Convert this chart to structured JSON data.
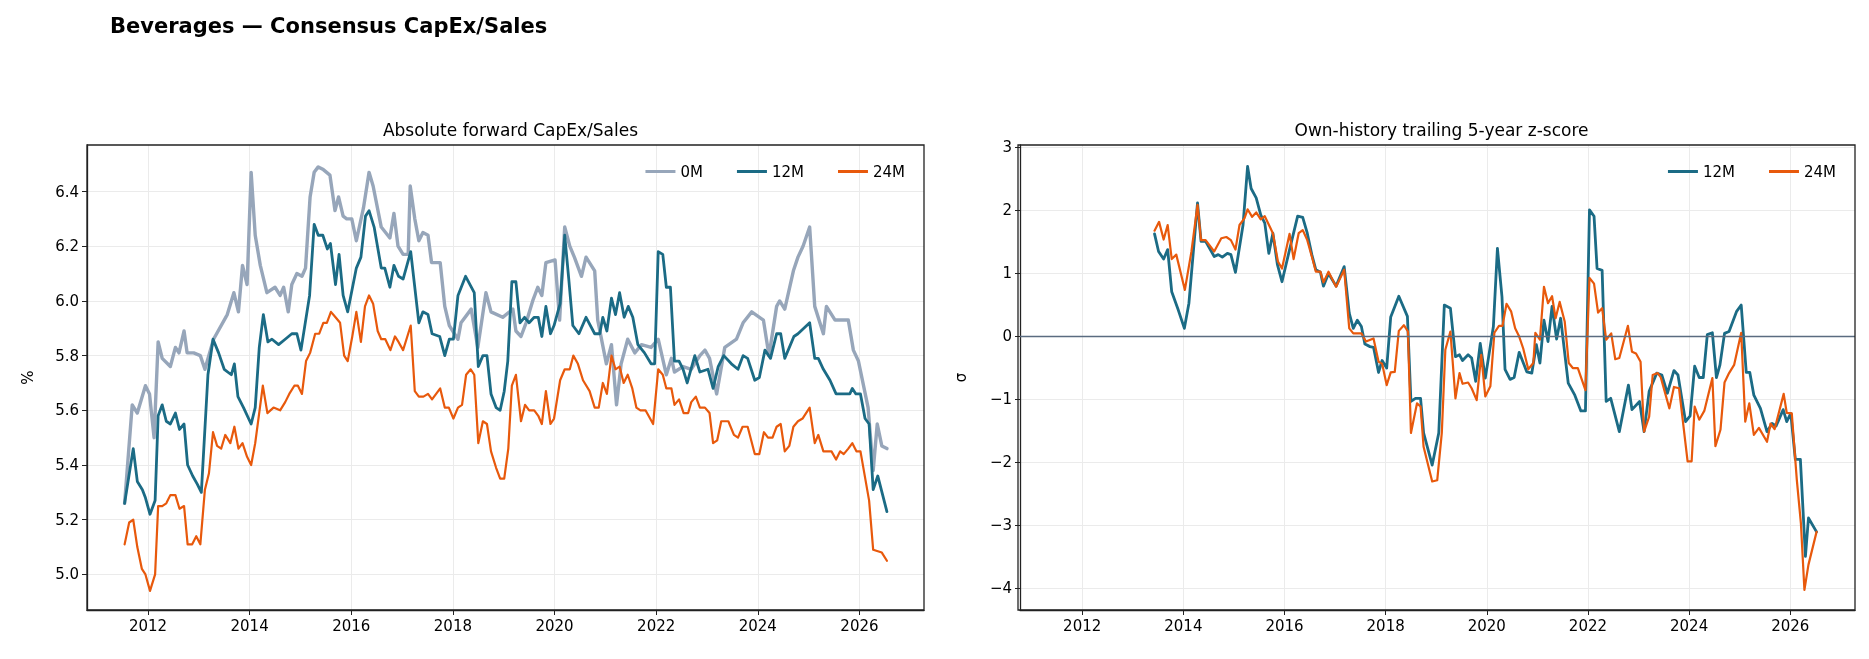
{
  "chart_data": [
    {
      "type": "line",
      "title": "Absolute forward CapEx/Sales",
      "ylabel": "%",
      "annotations": [
        "Beverages — Consensus CapEx/Sales"
      ],
      "xlim": [
        2010.8,
        2027.27
      ],
      "xticks": [
        2012,
        2014,
        2016,
        2018,
        2020,
        2022,
        2024,
        2026
      ],
      "ylim": [
        4.87,
        6.57
      ],
      "yticks": [
        {
          "value": 5,
          "label": "5.0"
        },
        {
          "value": 5.2,
          "label": "5.2"
        },
        {
          "value": 5.4,
          "label": "5.4"
        },
        {
          "value": 5.6,
          "label": "5.6"
        },
        {
          "value": 5.8,
          "label": "5.8"
        },
        {
          "value": 6,
          "label": "6.0"
        },
        {
          "value": 6.2,
          "label": "6.2"
        },
        {
          "value": 6.4,
          "label": "6.4"
        }
      ],
      "grid": true,
      "legend": "top right",
      "series": [
        {
          "name": "0M",
          "color": "#97a6ba",
          "x": [
            2011.54,
            2011.69,
            2011.79,
            2011.95,
            2012.03,
            2012.12,
            2012.2,
            2012.28,
            2012.44,
            2012.54,
            2012.61,
            2012.71,
            2012.77,
            2012.9,
            2013.03,
            2013.12,
            2013.29,
            2013.56,
            2013.69,
            2013.78,
            2013.86,
            2013.95,
            2014.03,
            2014.11,
            2014.21,
            2014.34,
            2014.5,
            2014.6,
            2014.67,
            2014.76,
            2014.83,
            2014.93,
            2015.03,
            2015.1,
            2015.19,
            2015.27,
            2015.35,
            2015.45,
            2015.58,
            2015.68,
            2015.75,
            2015.84,
            2015.91,
            2016.01,
            2016.1,
            2016.24,
            2016.35,
            2016.43,
            2016.59,
            2016.76,
            2016.84,
            2016.92,
            2017.02,
            2017.12,
            2017.16,
            2017.25,
            2017.33,
            2017.41,
            2017.51,
            2017.58,
            2017.75,
            2017.84,
            2017.93,
            2018.03,
            2018.1,
            2018.16,
            2018.36,
            2018.49,
            2018.65,
            2018.75,
            2018.98,
            2019.18,
            2019.24,
            2019.34,
            2019.44,
            2019.57,
            2019.67,
            2019.75,
            2019.83,
            2020.01,
            2020.1,
            2020.2,
            2020.3,
            2020.39,
            2020.53,
            2020.62,
            2020.79,
            2020.85,
            2021.02,
            2021.12,
            2021.22,
            2021.31,
            2021.44,
            2021.58,
            2021.71,
            2021.9,
            2022.04,
            2022.2,
            2022.3,
            2022.36,
            2022.53,
            2022.69,
            2022.86,
            2022.96,
            2023.05,
            2023.19,
            2023.35,
            2023.58,
            2023.71,
            2023.88,
            2024.11,
            2024.22,
            2024.37,
            2024.43,
            2024.53,
            2024.7,
            2024.79,
            2024.89,
            2025.02,
            2025.12,
            2025.29,
            2025.35,
            2025.52,
            2025.78,
            2025.88,
            2025.98,
            2026.17,
            2026.27,
            2026.35,
            2026.44,
            2026.54
          ],
          "values": [
            5.26,
            5.62,
            5.59,
            5.69,
            5.66,
            5.5,
            5.85,
            5.79,
            5.76,
            5.83,
            5.81,
            5.89,
            5.81,
            5.81,
            5.8,
            5.75,
            5.86,
            5.95,
            6.03,
            5.96,
            6.13,
            6.06,
            6.47,
            6.24,
            6.13,
            6.03,
            6.05,
            6.02,
            6.05,
            5.96,
            6.06,
            6.1,
            6.09,
            6.12,
            6.38,
            6.47,
            6.49,
            6.48,
            6.46,
            6.33,
            6.38,
            6.31,
            6.3,
            6.3,
            6.22,
            6.34,
            6.47,
            6.42,
            6.27,
            6.23,
            6.32,
            6.2,
            6.17,
            6.17,
            6.42,
            6.3,
            6.22,
            6.25,
            6.24,
            6.14,
            6.14,
            5.98,
            5.91,
            5.88,
            5.86,
            5.92,
            5.97,
            5.83,
            6.03,
            5.96,
            5.94,
            5.97,
            5.89,
            5.87,
            5.92,
            6,
            6.05,
            6.02,
            6.14,
            6.15,
            5.93,
            6.27,
            6.2,
            6.16,
            6.09,
            6.16,
            6.11,
            5.93,
            5.77,
            5.84,
            5.62,
            5.77,
            5.86,
            5.81,
            5.84,
            5.83,
            5.86,
            5.73,
            5.79,
            5.74,
            5.76,
            5.75,
            5.8,
            5.82,
            5.79,
            5.66,
            5.83,
            5.86,
            5.92,
            5.96,
            5.93,
            5.8,
            5.98,
            6,
            5.97,
            6.11,
            6.16,
            6.2,
            6.27,
            5.98,
            5.88,
            5.98,
            5.93,
            5.93,
            5.82,
            5.78,
            5.61,
            5.38,
            5.55,
            5.47,
            5.46
          ]
        },
        {
          "name": "12M",
          "color": "#1b6b85",
          "x": [
            2011.54,
            2011.71,
            2011.79,
            2011.89,
            2011.95,
            2012.04,
            2012.14,
            2012.2,
            2012.28,
            2012.36,
            2012.44,
            2012.54,
            2012.62,
            2012.71,
            2012.78,
            2012.88,
            2012.97,
            2013.05,
            2013.18,
            2013.28,
            2013.39,
            2013.5,
            2013.64,
            2013.7,
            2013.77,
            2013.88,
            2014.03,
            2014.11,
            2014.19,
            2014.27,
            2014.36,
            2014.44,
            2014.57,
            2014.7,
            2014.83,
            2014.93,
            2015.01,
            2015.18,
            2015.27,
            2015.35,
            2015.44,
            2015.53,
            2015.59,
            2015.69,
            2015.76,
            2015.84,
            2015.93,
            2016.1,
            2016.19,
            2016.28,
            2016.35,
            2016.45,
            2016.59,
            2016.66,
            2016.76,
            2016.84,
            2016.93,
            2017.02,
            2017.17,
            2017.33,
            2017.41,
            2017.51,
            2017.59,
            2017.74,
            2017.84,
            2017.93,
            2018.01,
            2018.1,
            2018.25,
            2018.42,
            2018.5,
            2018.59,
            2018.67,
            2018.75,
            2018.85,
            2018.93,
            2019.01,
            2019.08,
            2019.16,
            2019.24,
            2019.32,
            2019.41,
            2019.5,
            2019.6,
            2019.68,
            2019.75,
            2019.83,
            2019.92,
            2019.99,
            2020.11,
            2020.2,
            2020.28,
            2020.36,
            2020.48,
            2020.62,
            2020.79,
            2020.89,
            2020.95,
            2021.03,
            2021.12,
            2021.2,
            2021.28,
            2021.37,
            2021.45,
            2021.54,
            2021.64,
            2021.77,
            2021.9,
            2021.97,
            2022.04,
            2022.13,
            2022.2,
            2022.28,
            2022.36,
            2022.45,
            2022.53,
            2022.61,
            2022.76,
            2022.86,
            2023.02,
            2023.12,
            2023.22,
            2023.33,
            2023.48,
            2023.61,
            2023.71,
            2023.8,
            2023.94,
            2024.03,
            2024.14,
            2024.25,
            2024.37,
            2024.45,
            2024.53,
            2024.71,
            2024.79,
            2025.02,
            2025.12,
            2025.19,
            2025.29,
            2025.42,
            2025.54,
            2025.71,
            2025.81,
            2025.86,
            2025.93,
            2026.02,
            2026.11,
            2026.19,
            2026.27,
            2026.36,
            2026.54
          ],
          "values": [
            5.26,
            5.46,
            5.34,
            5.31,
            5.28,
            5.22,
            5.27,
            5.58,
            5.62,
            5.56,
            5.55,
            5.59,
            5.53,
            5.55,
            5.4,
            5.36,
            5.33,
            5.3,
            5.73,
            5.86,
            5.81,
            5.75,
            5.73,
            5.77,
            5.65,
            5.61,
            5.55,
            5.61,
            5.83,
            5.95,
            5.85,
            5.86,
            5.84,
            5.86,
            5.88,
            5.88,
            5.82,
            6.02,
            6.28,
            6.24,
            6.24,
            6.19,
            6.21,
            6.06,
            6.17,
            6.02,
            5.96,
            6.12,
            6.16,
            6.31,
            6.33,
            6.27,
            6.12,
            6.12,
            6.05,
            6.13,
            6.09,
            6.08,
            6.18,
            5.92,
            5.96,
            5.95,
            5.88,
            5.87,
            5.8,
            5.86,
            5.86,
            6.02,
            6.09,
            6.03,
            5.76,
            5.8,
            5.8,
            5.66,
            5.61,
            5.6,
            5.67,
            5.78,
            6.07,
            6.07,
            5.92,
            5.94,
            5.92,
            5.94,
            5.94,
            5.87,
            5.98,
            5.88,
            5.91,
            5.99,
            6.24,
            6.08,
            5.91,
            5.88,
            5.94,
            5.88,
            5.88,
            5.94,
            5.89,
            6.01,
            5.95,
            6.03,
            5.94,
            5.98,
            5.94,
            5.84,
            5.81,
            5.77,
            5.77,
            6.18,
            6.17,
            6.05,
            6.05,
            5.78,
            5.78,
            5.75,
            5.7,
            5.8,
            5.74,
            5.75,
            5.68,
            5.76,
            5.8,
            5.77,
            5.75,
            5.8,
            5.79,
            5.71,
            5.72,
            5.82,
            5.79,
            5.88,
            5.88,
            5.79,
            5.87,
            5.88,
            5.92,
            5.79,
            5.79,
            5.75,
            5.71,
            5.66,
            5.66,
            5.66,
            5.68,
            5.66,
            5.66,
            5.57,
            5.55,
            5.31,
            5.36,
            5.23
          ]
        },
        {
          "name": "24M",
          "color": "#e8590c",
          "x": [
            2011.54,
            2011.63,
            2011.71,
            2011.79,
            2011.88,
            2011.95,
            2012.04,
            2012.14,
            2012.2,
            2012.28,
            2012.36,
            2012.44,
            2012.54,
            2012.62,
            2012.71,
            2012.78,
            2012.87,
            2012.95,
            2013.03,
            2013.12,
            2013.2,
            2013.28,
            2013.36,
            2013.44,
            2013.52,
            2013.62,
            2013.7,
            2013.78,
            2013.86,
            2013.95,
            2014.03,
            2014.11,
            2014.26,
            2014.35,
            2014.47,
            2014.6,
            2014.7,
            2014.78,
            2014.88,
            2014.95,
            2015.03,
            2015.11,
            2015.19,
            2015.29,
            2015.37,
            2015.45,
            2015.52,
            2015.6,
            2015.69,
            2015.78,
            2015.86,
            2015.93,
            2016.02,
            2016.1,
            2016.19,
            2016.27,
            2016.35,
            2016.43,
            2016.52,
            2016.59,
            2016.67,
            2016.77,
            2016.86,
            2016.93,
            2017.02,
            2017.17,
            2017.25,
            2017.33,
            2017.42,
            2017.51,
            2017.59,
            2017.75,
            2017.84,
            2017.92,
            2018.01,
            2018.1,
            2018.18,
            2018.26,
            2018.35,
            2018.42,
            2018.5,
            2018.59,
            2018.67,
            2018.75,
            2018.85,
            2018.93,
            2019.01,
            2019.09,
            2019.16,
            2019.24,
            2019.34,
            2019.42,
            2019.5,
            2019.6,
            2019.68,
            2019.75,
            2019.83,
            2019.92,
            2019.99,
            2020.11,
            2020.2,
            2020.3,
            2020.37,
            2020.46,
            2020.56,
            2020.69,
            2020.79,
            2020.87,
            2020.95,
            2021.03,
            2021.12,
            2021.2,
            2021.28,
            2021.36,
            2021.44,
            2021.53,
            2021.61,
            2021.69,
            2021.79,
            2021.94,
            2022.04,
            2022.13,
            2022.2,
            2022.3,
            2022.36,
            2022.45,
            2022.54,
            2022.63,
            2022.69,
            2022.78,
            2022.86,
            2022.96,
            2023.05,
            2023.12,
            2023.2,
            2023.28,
            2023.42,
            2023.53,
            2023.61,
            2023.7,
            2023.8,
            2023.94,
            2024.03,
            2024.12,
            2024.2,
            2024.29,
            2024.37,
            2024.45,
            2024.53,
            2024.62,
            2024.7,
            2024.79,
            2024.88,
            2025.02,
            2025.12,
            2025.19,
            2025.29,
            2025.35,
            2025.45,
            2025.54,
            2025.62,
            2025.69,
            2025.78,
            2025.86,
            2025.94,
            2026.02,
            2026.19,
            2026.27,
            2026.44,
            2026.54
          ],
          "values": [
            5.11,
            5.19,
            5.2,
            5.1,
            5.02,
            5,
            4.94,
            5,
            5.25,
            5.25,
            5.26,
            5.29,
            5.29,
            5.24,
            5.25,
            5.11,
            5.11,
            5.14,
            5.11,
            5.31,
            5.37,
            5.52,
            5.47,
            5.46,
            5.51,
            5.48,
            5.54,
            5.46,
            5.48,
            5.43,
            5.4,
            5.48,
            5.69,
            5.59,
            5.61,
            5.6,
            5.63,
            5.66,
            5.69,
            5.69,
            5.66,
            5.78,
            5.81,
            5.88,
            5.88,
            5.92,
            5.92,
            5.96,
            5.94,
            5.92,
            5.8,
            5.78,
            5.87,
            5.96,
            5.85,
            5.98,
            6.02,
            5.99,
            5.89,
            5.86,
            5.86,
            5.82,
            5.87,
            5.85,
            5.82,
            5.91,
            5.67,
            5.65,
            5.65,
            5.66,
            5.64,
            5.68,
            5.61,
            5.61,
            5.57,
            5.61,
            5.62,
            5.73,
            5.75,
            5.73,
            5.48,
            5.56,
            5.55,
            5.45,
            5.39,
            5.35,
            5.35,
            5.46,
            5.69,
            5.73,
            5.56,
            5.62,
            5.6,
            5.6,
            5.58,
            5.55,
            5.67,
            5.55,
            5.57,
            5.71,
            5.75,
            5.75,
            5.8,
            5.77,
            5.71,
            5.67,
            5.61,
            5.61,
            5.7,
            5.66,
            5.8,
            5.75,
            5.76,
            5.7,
            5.73,
            5.68,
            5.61,
            5.6,
            5.6,
            5.55,
            5.75,
            5.73,
            5.68,
            5.68,
            5.62,
            5.64,
            5.59,
            5.59,
            5.63,
            5.65,
            5.61,
            5.61,
            5.59,
            5.48,
            5.49,
            5.56,
            5.56,
            5.51,
            5.5,
            5.54,
            5.54,
            5.44,
            5.44,
            5.52,
            5.5,
            5.5,
            5.54,
            5.55,
            5.45,
            5.47,
            5.54,
            5.56,
            5.57,
            5.61,
            5.48,
            5.51,
            5.45,
            5.45,
            5.45,
            5.42,
            5.45,
            5.44,
            5.46,
            5.48,
            5.45,
            5.45,
            5.27,
            5.09,
            5.08,
            5.05
          ]
        }
      ]
    },
    {
      "type": "line",
      "title": "Own-history trailing 5-year z-score",
      "ylabel": "σ",
      "xlim": [
        2010.77,
        2027.28
      ],
      "xticks": [
        2012,
        2014,
        2016,
        2018,
        2020,
        2022,
        2024,
        2026
      ],
      "ylim": [
        -4.35,
        3.03
      ],
      "yticks": [
        {
          "value": -4,
          "label": "−4"
        },
        {
          "value": -3,
          "label": "−3"
        },
        {
          "value": -2,
          "label": "−2"
        },
        {
          "value": -1,
          "label": "−1"
        },
        0,
        1,
        2,
        3
      ],
      "grid": true,
      "legend": "top right",
      "ref_lines": [
        {
          "axis": "y",
          "value": 0,
          "color": "#5a6b80"
        }
      ],
      "series": [
        {
          "name": "12M",
          "color": "#1b6b85",
          "x": [
            2013.43,
            2013.51,
            2013.61,
            2013.69,
            2013.77,
            2013.9,
            2014.02,
            2014.11,
            2014.28,
            2014.35,
            2014.44,
            2014.61,
            2014.69,
            2014.77,
            2014.87,
            2014.94,
            2015.03,
            2015.18,
            2015.27,
            2015.34,
            2015.44,
            2015.53,
            2015.61,
            2015.69,
            2015.77,
            2015.86,
            2015.95,
            2016.1,
            2016.26,
            2016.36,
            2016.45,
            2016.54,
            2016.62,
            2016.71,
            2016.77,
            2016.87,
            2017.02,
            2017.18,
            2017.28,
            2017.36,
            2017.44,
            2017.52,
            2017.59,
            2017.69,
            2017.76,
            2017.86,
            2017.93,
            2018.02,
            2018.1,
            2018.26,
            2018.43,
            2018.5,
            2018.59,
            2018.69,
            2018.75,
            2018.92,
            2019.05,
            2019.16,
            2019.28,
            2019.38,
            2019.46,
            2019.52,
            2019.63,
            2019.7,
            2019.78,
            2019.87,
            2019.97,
            2020.13,
            2020.21,
            2020.3,
            2020.36,
            2020.46,
            2020.54,
            2020.64,
            2020.79,
            2020.89,
            2020.98,
            2021.05,
            2021.13,
            2021.21,
            2021.29,
            2021.38,
            2021.46,
            2021.61,
            2021.74,
            2021.86,
            2021.95,
            2022.03,
            2022.12,
            2022.18,
            2022.28,
            2022.36,
            2022.45,
            2022.62,
            2022.8,
            2022.87,
            2023.02,
            2023.11,
            2023.21,
            2023.36,
            2023.46,
            2023.57,
            2023.7,
            2023.78,
            2023.93,
            2024.02,
            2024.11,
            2024.2,
            2024.28,
            2024.36,
            2024.46,
            2024.54,
            2024.61,
            2024.7,
            2024.79,
            2024.94,
            2025.03,
            2025.13,
            2025.2,
            2025.28,
            2025.41,
            2025.54,
            2025.64,
            2025.72,
            2025.86,
            2025.93,
            2026.01,
            2026.1,
            2026.2,
            2026.3,
            2026.36,
            2026.52
          ],
          "values": [
            1.62,
            1.34,
            1.22,
            1.37,
            0.7,
            0.41,
            0.12,
            0.52,
            2.11,
            1.5,
            1.5,
            1.26,
            1.29,
            1.25,
            1.31,
            1.29,
            1.01,
            1.76,
            2.69,
            2.34,
            2.19,
            1.92,
            1.79,
            1.31,
            1.63,
            1.13,
            0.86,
            1.37,
            1.9,
            1.88,
            1.63,
            1.29,
            1.05,
            1.01,
            0.79,
            0.99,
            0.79,
            1.1,
            0.36,
            0.12,
            0.25,
            0.15,
            -0.13,
            -0.17,
            -0.18,
            -0.58,
            -0.39,
            -0.51,
            0.3,
            0.63,
            0.31,
            -1.04,
            -0.99,
            -0.99,
            -1.54,
            -2.05,
            -1.54,
            0.49,
            0.44,
            -0.33,
            -0.3,
            -0.39,
            -0.3,
            -0.35,
            -0.72,
            -0.12,
            -0.67,
            0.15,
            1.39,
            0.62,
            -0.53,
            -0.69,
            -0.66,
            -0.26,
            -0.57,
            -0.59,
            -0.14,
            -0.43,
            0.25,
            -0.09,
            0.47,
            -0.05,
            0.28,
            -0.75,
            -0.94,
            -1.19,
            -1.19,
            2,
            1.9,
            1.07,
            1.04,
            -1.04,
            -0.99,
            -1.52,
            -0.78,
            -1.17,
            -1.04,
            -1.52,
            -0.88,
            -0.59,
            -0.62,
            -0.91,
            -0.55,
            -0.62,
            -1.36,
            -1.27,
            -0.48,
            -0.66,
            -0.66,
            0.02,
            0.05,
            -0.66,
            -0.46,
            0.04,
            0.07,
            0.39,
            0.49,
            -0.58,
            -0.58,
            -0.94,
            -1.15,
            -1.52,
            -1.39,
            -1.43,
            -1.17,
            -1.36,
            -1.23,
            -1.96,
            -1.96,
            -3.5,
            -2.89,
            -3.11
          ]
        },
        {
          "name": "24M",
          "color": "#e8590c",
          "x": [
            2013.43,
            2013.52,
            2013.61,
            2013.69,
            2013.77,
            2013.86,
            2014.03,
            2014.16,
            2014.28,
            2014.35,
            2014.44,
            2014.61,
            2014.75,
            2014.85,
            2014.94,
            2015.03,
            2015.11,
            2015.21,
            2015.27,
            2015.36,
            2015.44,
            2015.53,
            2015.61,
            2015.77,
            2015.87,
            2015.95,
            2016.1,
            2016.18,
            2016.28,
            2016.36,
            2016.45,
            2016.54,
            2016.62,
            2016.71,
            2016.77,
            2016.87,
            2017.02,
            2017.18,
            2017.28,
            2017.36,
            2017.52,
            2017.61,
            2017.76,
            2017.86,
            2017.93,
            2018.02,
            2018.1,
            2018.18,
            2018.26,
            2018.36,
            2018.44,
            2018.5,
            2018.62,
            2018.69,
            2018.75,
            2018.92,
            2019.02,
            2019.11,
            2019.18,
            2019.28,
            2019.38,
            2019.46,
            2019.52,
            2019.63,
            2019.7,
            2019.8,
            2019.89,
            2019.97,
            2020.07,
            2020.15,
            2020.24,
            2020.31,
            2020.39,
            2020.48,
            2020.56,
            2020.64,
            2020.72,
            2020.82,
            2020.92,
            2020.96,
            2021.05,
            2021.13,
            2021.21,
            2021.29,
            2021.36,
            2021.44,
            2021.54,
            2021.62,
            2021.7,
            2021.8,
            2021.95,
            2022.03,
            2022.12,
            2022.2,
            2022.28,
            2022.36,
            2022.46,
            2022.54,
            2022.62,
            2022.79,
            2022.87,
            2022.95,
            2023.04,
            2023.11,
            2023.21,
            2023.28,
            2023.38,
            2023.44,
            2023.61,
            2023.7,
            2023.8,
            2023.97,
            2024.05,
            2024.11,
            2024.2,
            2024.3,
            2024.46,
            2024.52,
            2024.62,
            2024.7,
            2024.79,
            2024.89,
            2025.03,
            2025.11,
            2025.19,
            2025.28,
            2025.38,
            2025.54,
            2025.61,
            2025.69,
            2025.87,
            2025.93,
            2026.03,
            2026.13,
            2026.21,
            2026.28,
            2026.36,
            2026.52
          ],
          "values": [
            1.67,
            1.81,
            1.53,
            1.76,
            1.22,
            1.29,
            0.73,
            1.34,
            2.08,
            1.52,
            1.52,
            1.34,
            1.55,
            1.57,
            1.52,
            1.37,
            1.76,
            1.87,
            2.01,
            1.89,
            1.96,
            1.85,
            1.9,
            1.63,
            1.18,
            1.07,
            1.62,
            1.22,
            1.63,
            1.68,
            1.52,
            1.26,
            1.02,
            1.02,
            0.85,
            1.02,
            0.78,
            1.05,
            0.12,
            0.04,
            0.04,
            -0.09,
            -0.04,
            -0.41,
            -0.44,
            -0.78,
            -0.58,
            -0.57,
            0.08,
            0.17,
            0.07,
            -1.54,
            -1.07,
            -1.12,
            -1.76,
            -2.31,
            -2.29,
            -1.54,
            -0.22,
            0.07,
            -0.99,
            -0.59,
            -0.76,
            -0.74,
            -0.83,
            -1.02,
            -0.3,
            -0.96,
            -0.8,
            0.05,
            0.16,
            0.16,
            0.51,
            0.39,
            0.12,
            -0.01,
            -0.2,
            -0.53,
            -0.43,
            0.05,
            -0.06,
            0.78,
            0.52,
            0.63,
            0.28,
            0.54,
            0.23,
            -0.43,
            -0.51,
            -0.51,
            -0.86,
            0.92,
            0.83,
            0.37,
            0.44,
            -0.06,
            0.04,
            -0.37,
            -0.35,
            0.16,
            -0.25,
            -0.28,
            -0.41,
            -1.52,
            -1.28,
            -0.62,
            -0.59,
            -0.66,
            -1.15,
            -0.81,
            -0.83,
            -1.99,
            -1.99,
            -1.12,
            -1.33,
            -1.19,
            -0.67,
            -1.75,
            -1.49,
            -0.74,
            -0.59,
            -0.46,
            0.05,
            -1.36,
            -1.07,
            -1.57,
            -1.46,
            -1.68,
            -1.39,
            -1.48,
            -0.92,
            -1.22,
            -1.23,
            -2.29,
            -2.97,
            -4.03,
            -3.63,
            -3.11
          ]
        }
      ]
    }
  ]
}
